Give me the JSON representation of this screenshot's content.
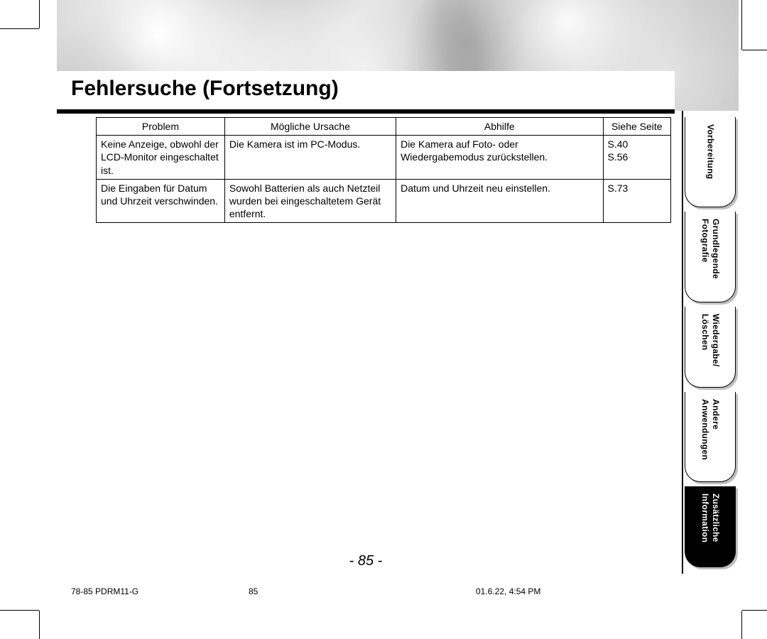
{
  "title": "Fehlersuche (Fortsetzung)",
  "table": {
    "headers": {
      "problem": "Problem",
      "cause": "Mögliche Ursache",
      "remedy": "Abhilfe",
      "page": "Siehe Seite"
    },
    "rows": [
      {
        "problem": "Keine Anzeige, obwohl der LCD-Monitor eingeschaltet ist.",
        "cause": "Die Kamera ist im PC-Modus.",
        "remedy": "Die Kamera auf Foto- oder Wiedergabemodus zurückstellen.",
        "page": "S.40\nS.56"
      },
      {
        "problem": "Die Eingaben für Datum und Uhrzeit verschwinden.",
        "cause": "Sowohl Batterien als auch Netzteil wurden bei eingeschaltetem Gerät entfernt.",
        "remedy": "Datum und Uhrzeit neu einstellen.",
        "page": "S.73"
      }
    ]
  },
  "tabs": [
    {
      "line1": "Vorbereitung",
      "line2": "",
      "active": false
    },
    {
      "line1": "Grundlegende",
      "line2": "Fotografie",
      "active": false
    },
    {
      "line1": "Wiedergabe/",
      "line2": "Löschen",
      "active": false
    },
    {
      "line1": "Andere",
      "line2": "Anwendungen",
      "active": false
    },
    {
      "line1": "Zusätzliche",
      "line2": "Information",
      "active": true
    }
  ],
  "page_number": "- 85 -",
  "footer": {
    "doc": "78-85 PDRM11-G",
    "page": "85",
    "timestamp": "01.6.22, 4:54 PM"
  },
  "colors": {
    "black": "#000000",
    "white": "#ffffff",
    "shadow": "#bfbfbf"
  }
}
